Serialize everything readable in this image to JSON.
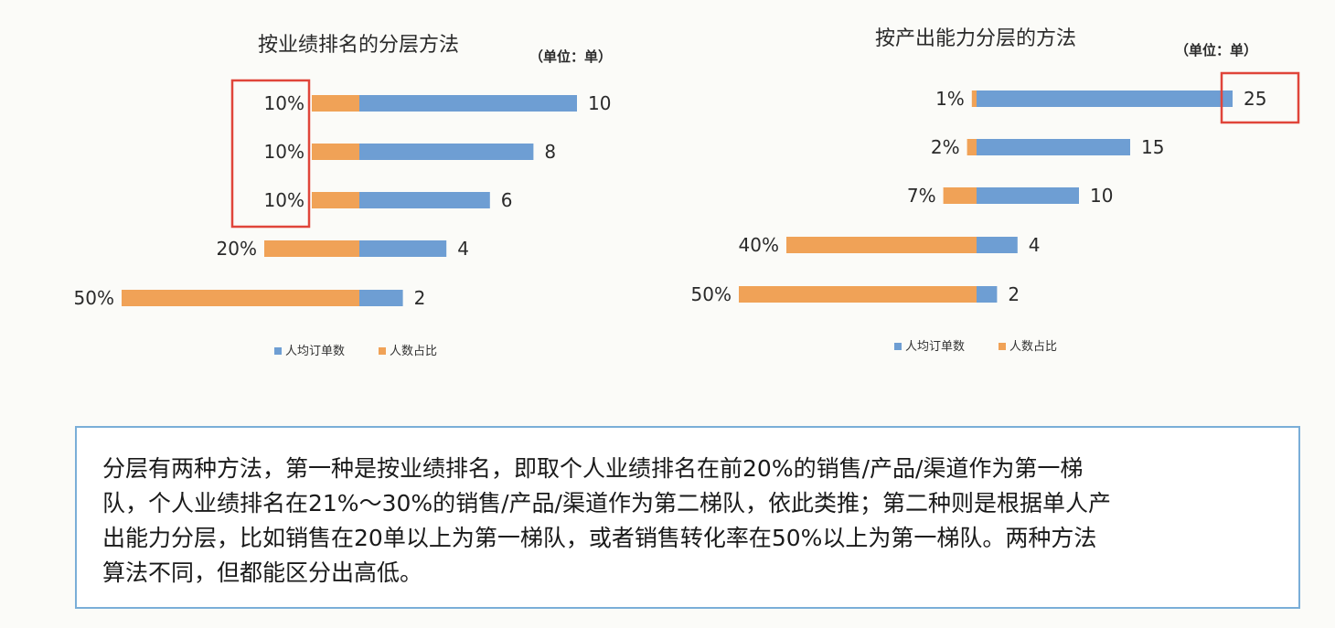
{
  "chart_data": [
    {
      "type": "bar",
      "title": "按业绩排名的分层方法",
      "unit_note": "（单位：单）",
      "categories": [
        "10%",
        "10%",
        "10%",
        "20%",
        "50%"
      ],
      "series": [
        {
          "name": "人均订单数",
          "color": "#6e9ed3",
          "values": [
            10,
            8,
            6,
            4,
            2
          ]
        },
        {
          "name": "人数占比",
          "color": "#f0a257",
          "values": [
            10,
            10,
            10,
            20,
            50
          ]
        }
      ],
      "value_labels": [
        "10",
        "8",
        "6",
        "4",
        "2"
      ],
      "highlight": "red box around the three 10% labels",
      "legend": "bottom"
    },
    {
      "type": "bar",
      "title": "按产出能力分层的方法",
      "unit_note": "（单位：单）",
      "categories": [
        "1%",
        "2%",
        "7%",
        "40%",
        "50%"
      ],
      "series": [
        {
          "name": "人均订单数",
          "color": "#6e9ed3",
          "values": [
            25,
            15,
            10,
            4,
            2
          ]
        },
        {
          "name": "人数占比",
          "color": "#f0a257",
          "values": [
            1,
            2,
            7,
            40,
            50
          ]
        }
      ],
      "value_labels": [
        "25",
        "15",
        "10",
        "4",
        "2"
      ],
      "highlight": "red box around the value 25",
      "legend": "bottom"
    }
  ],
  "note": {
    "line1": "分层有两种方法，第一种是按业绩排名，即取个人业绩排名在前20%的销售/产品/渠道作为第一梯",
    "line2": "队，个人业绩排名在21%～30%的销售/产品/渠道作为第二梯队，依此类推；第二种则是根据单人产",
    "line3": "出能力分层，比如销售在20单以上为第一梯队，或者销售转化率在50%以上为第一梯队。两种方法",
    "line4": "算法不同，但都能区分出高低。"
  }
}
